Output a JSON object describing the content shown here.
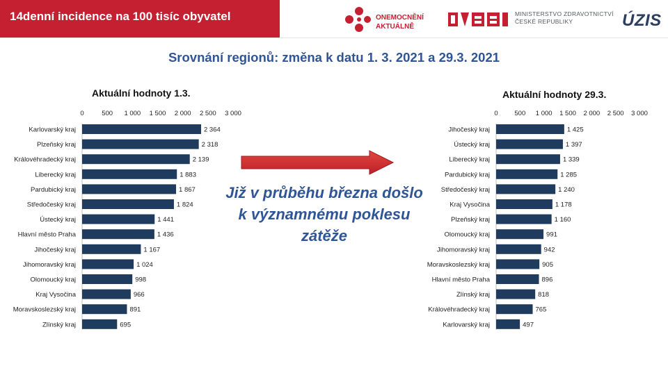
{
  "header": {
    "title": "14denní incidence na 100 tisíc obyvatel",
    "logo_onemocneni": "ONEMOCNĚNÍ\nAKTUÁLNĚ",
    "logo_ministry": "MINISTERSTVO ZDRAVOTNICTVÍ\nČESKÉ REPUBLIKY",
    "logo_uzis": "ÚZIS"
  },
  "subtitle": "Srovnání regionů: změna k datu 1. 3. 2021 a 29.3. 2021",
  "callout": "Již v průběhu března došlo k významnému poklesu zátěže",
  "colors": {
    "brand_red": "#c42031",
    "bar": "#1f3b5e",
    "accent_blue": "#2f5597",
    "arrow": "#d9262e"
  },
  "chart_data": [
    {
      "type": "bar",
      "orientation": "horizontal",
      "title": "Aktuální hodnoty 1.3.",
      "xlim": [
        0,
        3000
      ],
      "xticks": [
        0,
        500,
        1000,
        1500,
        2000,
        2500,
        3000
      ],
      "xtick_labels": [
        "0",
        "500",
        "1 000",
        "1 500",
        "2 000",
        "2 500",
        "3 000"
      ],
      "categories": [
        "Karlovarský kraj",
        "Plzeňský kraj",
        "Královéhradecký kraj",
        "Liberecký kraj",
        "Pardubický kraj",
        "Středočeský kraj",
        "Ústecký kraj",
        "Hlavní město Praha",
        "Jihočeský kraj",
        "Jihomoravský kraj",
        "Olomoucký kraj",
        "Kraj Vysočina",
        "Moravskoslezský kraj",
        "Zlínský kraj"
      ],
      "values": [
        2364,
        2318,
        2139,
        1883,
        1867,
        1824,
        1441,
        1436,
        1167,
        1024,
        998,
        966,
        891,
        695
      ],
      "value_labels": [
        "2 364",
        "2 318",
        "2 139",
        "1 883",
        "1 867",
        "1 824",
        "1 441",
        "1 436",
        "1 167",
        "1 024",
        "998",
        "966",
        "891",
        "695"
      ]
    },
    {
      "type": "bar",
      "orientation": "horizontal",
      "title": "Aktuální hodnoty 29.3.",
      "xlim": [
        0,
        3000
      ],
      "xticks": [
        0,
        500,
        1000,
        1500,
        2000,
        2500,
        3000
      ],
      "xtick_labels": [
        "0",
        "500",
        "1 000",
        "1 500",
        "2 000",
        "2 500",
        "3 000"
      ],
      "categories": [
        "Jihočeský kraj",
        "Ústecký kraj",
        "Liberecký kraj",
        "Pardubický kraj",
        "Středočeský kraj",
        "Kraj Vysočina",
        "Plzeňský kraj",
        "Olomoucký kraj",
        "Jihomoravský kraj",
        "Moravskoslezský kraj",
        "Hlavní město Praha",
        "Zlínský kraj",
        "Královéhradecký kraj",
        "Karlovarský kraj"
      ],
      "values": [
        1425,
        1397,
        1339,
        1285,
        1240,
        1178,
        1160,
        991,
        942,
        905,
        896,
        818,
        765,
        497
      ],
      "value_labels": [
        "1 425",
        "1 397",
        "1 339",
        "1 285",
        "1 240",
        "1 178",
        "1 160",
        "991",
        "942",
        "905",
        "896",
        "818",
        "765",
        "497"
      ]
    }
  ]
}
